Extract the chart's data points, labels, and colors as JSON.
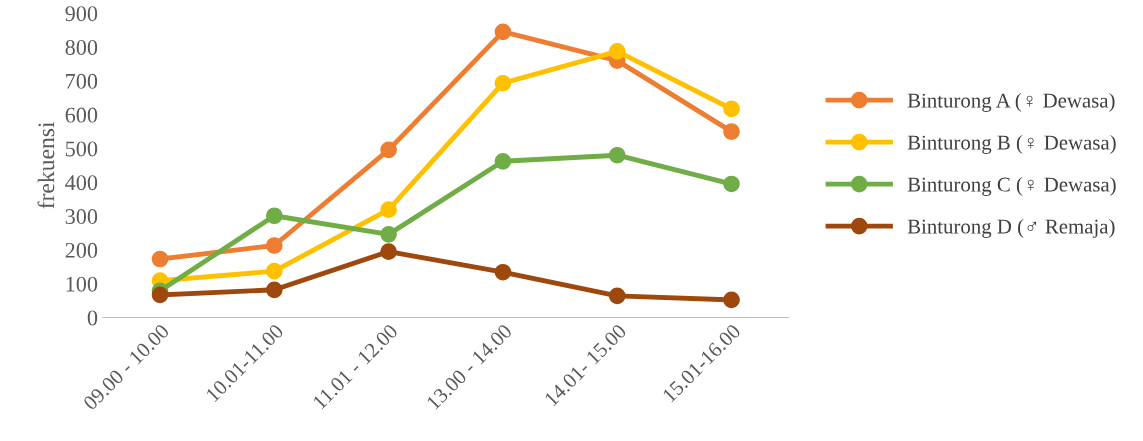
{
  "chart_data": {
    "type": "line",
    "ylabel": "frekuensi",
    "categories": [
      "09.00 - 10.00",
      "10.01-11.00",
      "11.01 - 12.00",
      "13.00 - 14.00",
      "14.01- 15.00",
      "15.01-16.00"
    ],
    "series": [
      {
        "name": "Binturong A (♀ Dewasa)",
        "color": "#ed7d31",
        "values": [
          173,
          213,
          496,
          845,
          760,
          550
        ]
      },
      {
        "name": "Binturong B (♀ Dewasa)",
        "color": "#ffc000",
        "values": [
          109,
          137,
          319,
          693,
          787,
          617
        ]
      },
      {
        "name": "Binturong C (♀ Dewasa)",
        "color": "#70ad47",
        "values": [
          79,
          301,
          246,
          462,
          480,
          395
        ]
      },
      {
        "name": "Binturong D (♂ Remaja)",
        "color": "#9e480e",
        "values": [
          67,
          82,
          195,
          134,
          64,
          52
        ]
      }
    ],
    "ylim": [
      0,
      900
    ],
    "yticks": [
      0,
      100,
      200,
      300,
      400,
      500,
      600,
      700,
      800,
      900
    ],
    "grid": false,
    "legend": "right",
    "marker": "circle",
    "line_style": "solid"
  }
}
